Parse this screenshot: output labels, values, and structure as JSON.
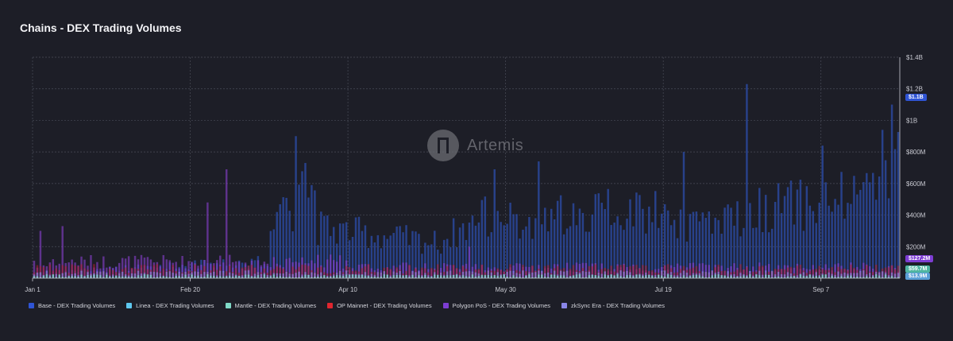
{
  "title": "Chains - DEX Trading Volumes",
  "watermark": {
    "text": "Artemis",
    "icon": "artemis-logo-icon"
  },
  "chart_data": {
    "type": "bar",
    "title": "Chains - DEX Trading Volumes",
    "x_tick_labels": [
      "Jan 1",
      "Feb 20",
      "Apr 10",
      "May 30",
      "Jul 19",
      "Sep 7"
    ],
    "y_tick_labels": [
      "$1.4B",
      "$1.2B",
      "$1B",
      "$800M",
      "$600M",
      "$400M",
      "$200M"
    ],
    "ylim": [
      0,
      1400000000
    ],
    "grid": true,
    "legend_position": "bottom-left",
    "days": 275,
    "series": [
      {
        "name": "Base - DEX Trading Volumes",
        "color": "#2f54d4",
        "peaks": [
          [
            83,
            900000000
          ],
          [
            86,
            730000000
          ],
          [
            146,
            690000000
          ],
          [
            160,
            740000000
          ],
          [
            206,
            800000000
          ],
          [
            226,
            1230000000
          ],
          [
            250,
            840000000
          ],
          [
            269,
            940000000
          ],
          [
            272,
            1100000000
          ]
        ],
        "last_value_label": "$1.1B"
      },
      {
        "name": "Linea - DEX Trading Volumes",
        "color": "#5ec8ef",
        "last_value_label": "$13.9M"
      },
      {
        "name": "Mantle - DEX Trading Volumes",
        "color": "#7fd9c7",
        "last_value_label": "$59.7M"
      },
      {
        "name": "OP Mainnet - DEX Trading Volumes",
        "color": "#e0262f"
      },
      {
        "name": "Polygon PoS - DEX Trading Volumes",
        "color": "#7d3dd3",
        "peaks": [
          [
            2,
            300000000
          ],
          [
            9,
            330000000
          ],
          [
            55,
            480000000
          ],
          [
            61,
            690000000
          ],
          [
            138,
            200000000
          ]
        ],
        "last_value_label": "$127.2M"
      },
      {
        "name": "zkSync Era - DEX Trading Volumes",
        "color": "#8a86e8"
      }
    ]
  }
}
